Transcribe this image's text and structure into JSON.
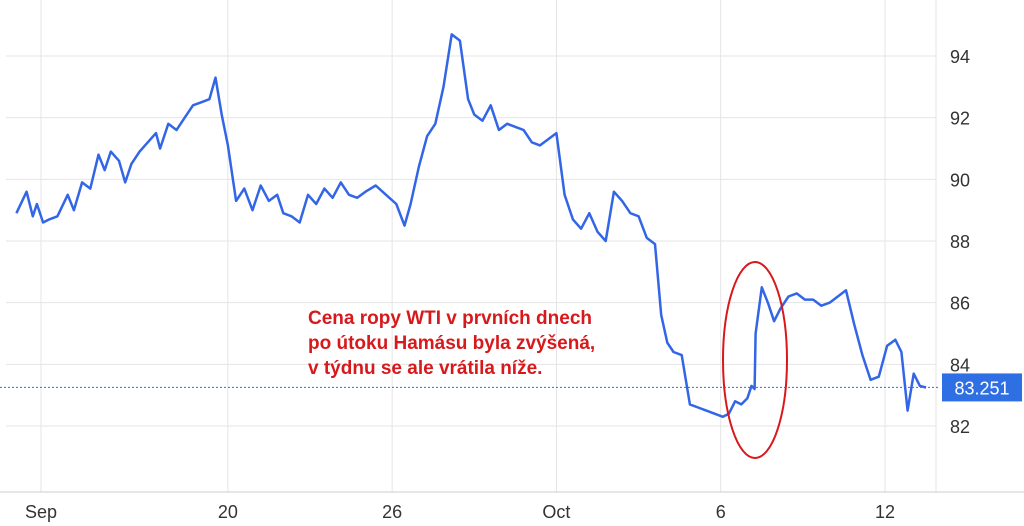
{
  "chart_data": {
    "type": "line",
    "title": "",
    "xlabel": "",
    "ylabel": "",
    "ylim": [
      80,
      95.5
    ],
    "xlim": [
      0,
      42.3
    ],
    "x_ticks": [
      {
        "x": 1.2,
        "label": "Sep"
      },
      {
        "x": 10.3,
        "label": "20"
      },
      {
        "x": 18.3,
        "label": "26"
      },
      {
        "x": 26.3,
        "label": "Oct"
      },
      {
        "x": 34.3,
        "label": "6"
      },
      {
        "x": 42.3,
        "label": "12"
      }
    ],
    "y_ticks": [
      82,
      84,
      86,
      88,
      90,
      92,
      94
    ],
    "current_value": 83.251,
    "current_label": "83.251",
    "grid": true,
    "series": [
      {
        "color": "#3366e6",
        "x": [
          0.0,
          0.5,
          0.8,
          1.0,
          1.3,
          1.6,
          2.0,
          2.5,
          2.8,
          3.2,
          3.6,
          4.0,
          4.3,
          4.6,
          5.0,
          5.3,
          5.6,
          6.0,
          6.4,
          6.8,
          7.0,
          7.4,
          7.8,
          8.2,
          8.6,
          9.0,
          9.4,
          9.7,
          10.0,
          10.3,
          10.7,
          11.1,
          11.5,
          11.9,
          12.3,
          12.7,
          13.0,
          13.4,
          13.8,
          14.2,
          14.6,
          15.0,
          15.4,
          15.8,
          16.2,
          16.6,
          17.0,
          17.5,
          18.0,
          18.5,
          18.9,
          19.2,
          19.6,
          20.0,
          20.4,
          20.8,
          21.2,
          21.6,
          22.0,
          22.3,
          22.7,
          23.1,
          23.5,
          23.9,
          24.3,
          24.7,
          25.1,
          25.5,
          25.9,
          26.3,
          26.7,
          27.1,
          27.5,
          27.9,
          28.3,
          28.7,
          29.1,
          29.5,
          29.9,
          30.3,
          30.7,
          31.1,
          31.4,
          31.7,
          32.0,
          32.4,
          32.8,
          33.2,
          33.6,
          34.0,
          34.4,
          34.7,
          35.0,
          35.3,
          35.6,
          35.8,
          35.95,
          36.0,
          36.3,
          36.6,
          36.9,
          37.2,
          37.6,
          38.0,
          38.4,
          38.8,
          39.2,
          39.6,
          40.0,
          40.4,
          40.8,
          41.2,
          41.6,
          42.0,
          42.4,
          42.8,
          43.1,
          43.4,
          43.7,
          44.0,
          44.3
        ],
        "y": [
          88.9,
          89.6,
          88.8,
          89.2,
          88.6,
          88.7,
          88.8,
          89.5,
          89.0,
          89.9,
          89.7,
          90.8,
          90.3,
          90.9,
          90.6,
          89.9,
          90.5,
          90.9,
          91.2,
          91.5,
          91.0,
          91.8,
          91.6,
          92.0,
          92.4,
          92.5,
          92.6,
          93.3,
          92.1,
          91.1,
          89.3,
          89.7,
          89.0,
          89.8,
          89.3,
          89.5,
          88.9,
          88.8,
          88.6,
          89.5,
          89.2,
          89.7,
          89.4,
          89.9,
          89.5,
          89.4,
          89.6,
          89.8,
          89.5,
          89.2,
          88.5,
          89.2,
          90.4,
          91.4,
          91.8,
          93.0,
          94.7,
          94.5,
          92.6,
          92.1,
          91.9,
          92.4,
          91.6,
          91.8,
          91.7,
          91.6,
          91.2,
          91.1,
          91.3,
          91.5,
          89.5,
          88.7,
          88.4,
          88.9,
          88.3,
          88.0,
          89.6,
          89.3,
          88.9,
          88.8,
          88.1,
          87.9,
          85.6,
          84.7,
          84.4,
          84.3,
          82.7,
          82.6,
          82.5,
          82.4,
          82.3,
          82.4,
          82.8,
          82.7,
          82.9,
          83.3,
          83.2,
          85.0,
          86.5,
          86.0,
          85.4,
          85.8,
          86.2,
          86.3,
          86.1,
          86.1,
          85.9,
          86.0,
          86.2,
          86.4,
          85.3,
          84.3,
          83.5,
          83.6,
          84.6,
          84.8,
          84.4,
          82.5,
          83.7,
          83.3,
          83.25
        ]
      }
    ]
  },
  "annotation": {
    "lines": [
      "Cena ropy WTI v prvních dnech",
      "po útoku Hamásu byla zvýšená,",
      "v týdnu se ale vrátila níže."
    ],
    "color": "#d7191c",
    "ellipse_color": "#d7191c"
  },
  "colors": {
    "line": "#3366e6",
    "grid": "#e5e5e5",
    "label_box": "#2f6fe4",
    "label_text": "#ffffff",
    "axis_text": "#333333"
  }
}
